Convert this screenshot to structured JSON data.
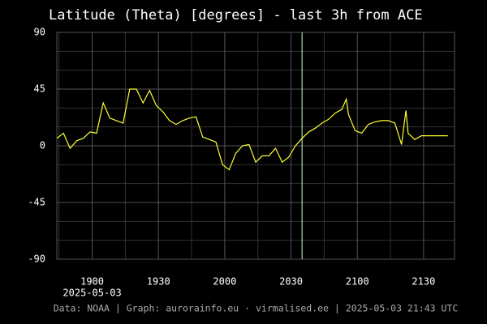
{
  "chart_data": {
    "type": "line",
    "title": "Latitude (Theta) [degrees] - last 3h from ACE",
    "footer": "Data: NOAA | Graph: aurorainfo.eu · virmalised.ee | 2025-05-03 21:43 UTC",
    "x_date_label": "2025-05-03",
    "x": [
      "1844",
      "1847",
      "1850",
      "1853",
      "1856",
      "1859",
      "1902",
      "1905",
      "1908",
      "1911",
      "1914",
      "1917",
      "1920",
      "1923",
      "1926",
      "1929",
      "1932",
      "1935",
      "1938",
      "1941",
      "1944",
      "1947",
      "1950",
      "1953",
      "1956",
      "1959",
      "2002",
      "2005",
      "2008",
      "2011",
      "2014",
      "2017",
      "2020",
      "2023",
      "2026",
      "2029",
      "2032",
      "2035",
      "2038",
      "2041",
      "2044",
      "2047",
      "2050",
      "2053",
      "2055",
      "2056",
      "2059",
      "2102",
      "2105",
      "2108",
      "2111",
      "2114",
      "2117",
      "2120",
      "2122",
      "2123",
      "2126",
      "2129",
      "2132",
      "2141"
    ],
    "series": [
      {
        "name": "Latitude",
        "color": "#ffff33",
        "values": [
          6,
          10,
          -2,
          4,
          6,
          11,
          10,
          34,
          22,
          20,
          18,
          45,
          45,
          34,
          44,
          32,
          27,
          20,
          17,
          20,
          22,
          23,
          7,
          5,
          3,
          -15,
          -19,
          -6,
          0,
          1,
          -13,
          -8,
          -8,
          -2,
          -13,
          -9,
          0,
          6,
          11,
          14,
          18,
          21,
          26,
          29,
          37,
          25,
          12,
          10,
          17,
          19,
          20,
          20,
          18,
          1,
          28,
          10,
          5,
          8,
          8,
          8
        ]
      }
    ],
    "xlim": [
      "1844",
      "2144"
    ],
    "xticks": [
      "1900",
      "1930",
      "2000",
      "2030",
      "2100",
      "2130"
    ],
    "x_minor_grid": [
      "1845",
      "1915",
      "1945",
      "2015",
      "2045",
      "2115"
    ],
    "ylim": [
      -90,
      90
    ],
    "yticks": [
      -90,
      -45,
      0,
      45,
      90
    ],
    "y_minor_grid": [
      -75,
      -60,
      -30,
      -15,
      15,
      30,
      60,
      75
    ],
    "vline": "2035",
    "vline_color": "#ccffcc",
    "grid": true
  }
}
